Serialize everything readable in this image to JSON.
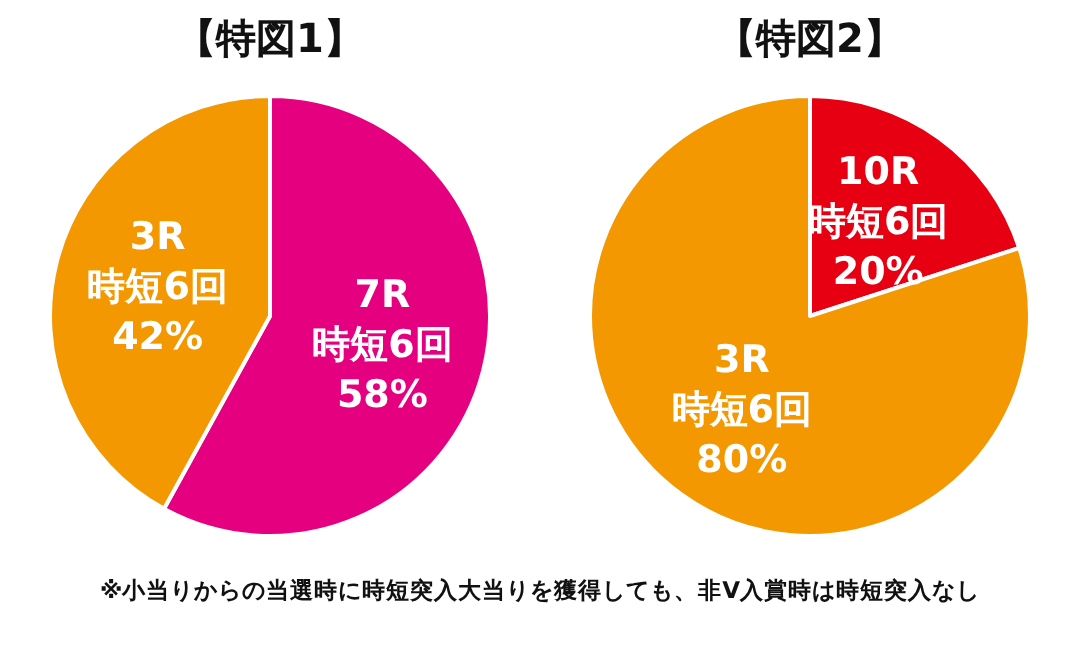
{
  "chart_data": [
    {
      "type": "pie",
      "title": "【特図1】",
      "categories": [
        "7R\n時短6回",
        "3R\n時短6回"
      ],
      "values": [
        58,
        42
      ],
      "colors": [
        "#e4007f",
        "#f39800"
      ],
      "value_labels": [
        "58%",
        "42%"
      ]
    },
    {
      "type": "pie",
      "title": "【特図2】",
      "categories": [
        "10R\n時短6回",
        "3R\n時短6回"
      ],
      "values": [
        20,
        80
      ],
      "colors": [
        "#e60012",
        "#f39800"
      ],
      "value_labels": [
        "20%",
        "80%"
      ],
      "annotations": [
        "※小当りからの当選時に時短突入大当りを獲得しても、非V入賞時は時短突入なし"
      ]
    }
  ]
}
